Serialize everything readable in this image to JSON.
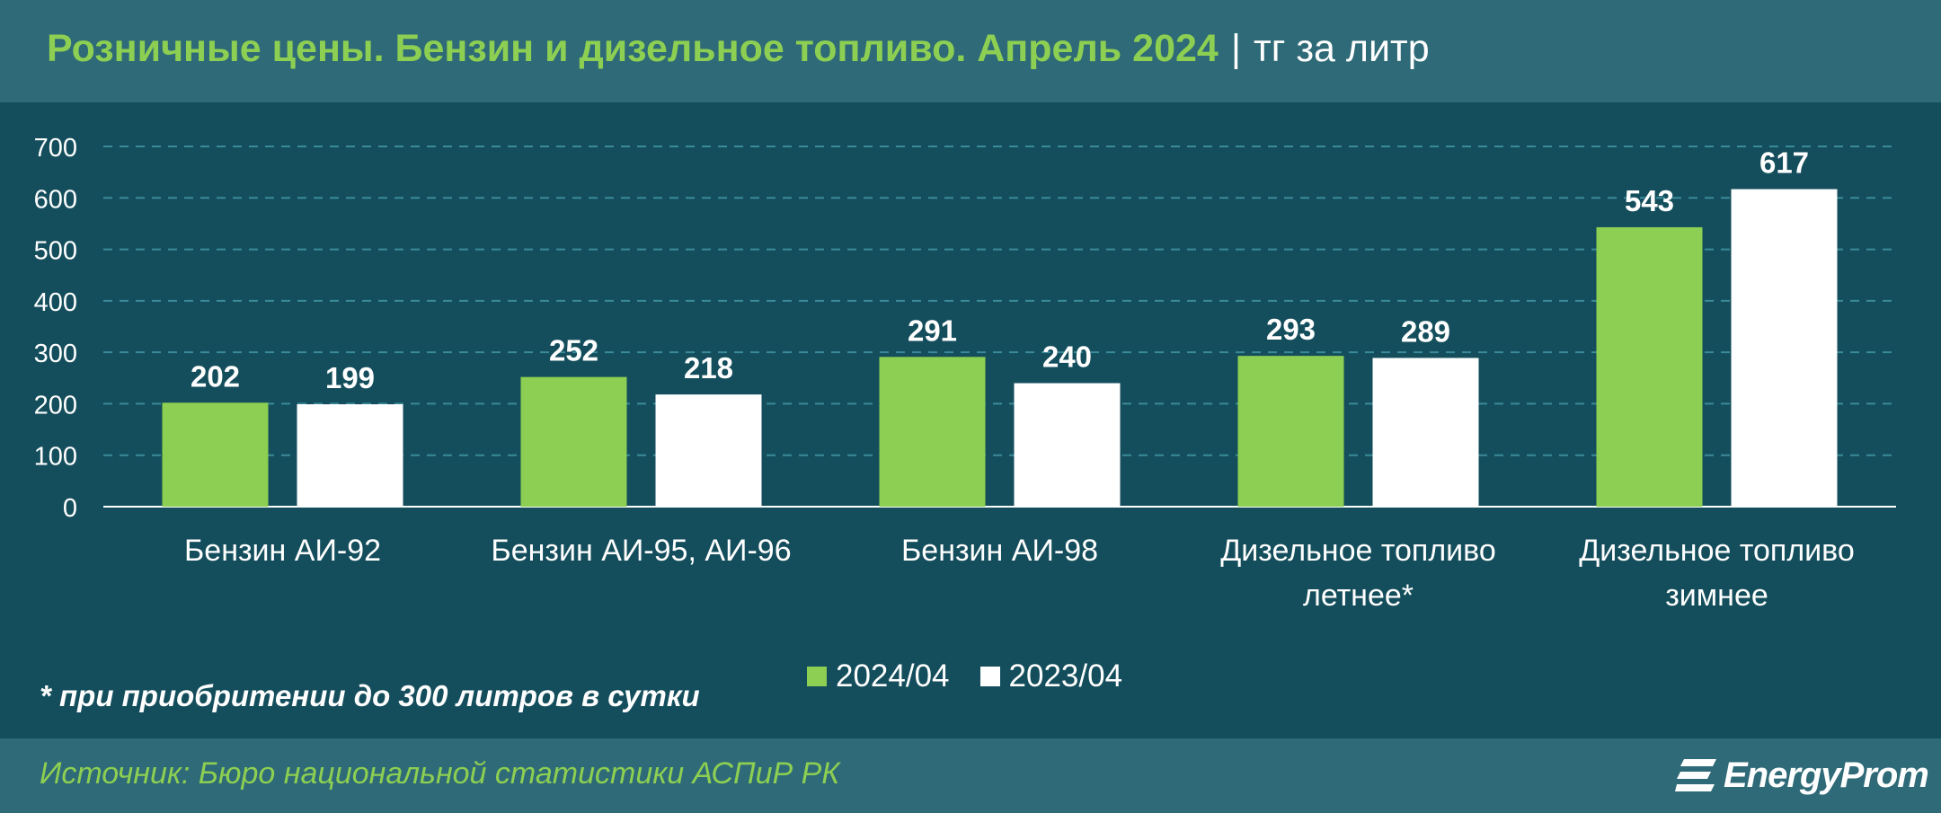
{
  "header": {
    "title": "Розничные цены. Бензин и дизельное топливо. Апрель 2024",
    "separator": "|",
    "unit": "тг за литр"
  },
  "chart_data": {
    "type": "bar",
    "categories": [
      [
        "Бензин АИ-92"
      ],
      [
        "Бензин АИ-95, АИ-96"
      ],
      [
        "Бензин АИ-98"
      ],
      [
        "Дизельное топливо",
        "летнее*"
      ],
      [
        "Дизельное топливо",
        "зимнее"
      ]
    ],
    "series": [
      {
        "name": "2024/04",
        "color": "#8dcf52",
        "values": [
          202,
          252,
          291,
          293,
          543
        ]
      },
      {
        "name": "2023/04",
        "color": "#ffffff",
        "values": [
          199,
          218,
          240,
          289,
          617
        ]
      }
    ],
    "ylim": [
      0,
      700
    ],
    "yticks": [
      "0",
      "100",
      "200",
      "300",
      "400",
      "500",
      "600",
      "700"
    ],
    "grid": true,
    "legend_position": "bottom"
  },
  "footnote": "* при приобритении до 300 литров в сутки",
  "footer": {
    "source": "Источник: Бюро национальной статистики АСПиР РК",
    "logo_text": "EnergyProm"
  },
  "colors": {
    "background": "#144e5c",
    "band": "#2e6a77",
    "accent_green": "#8dcf52",
    "grid": "#3a8a99"
  }
}
